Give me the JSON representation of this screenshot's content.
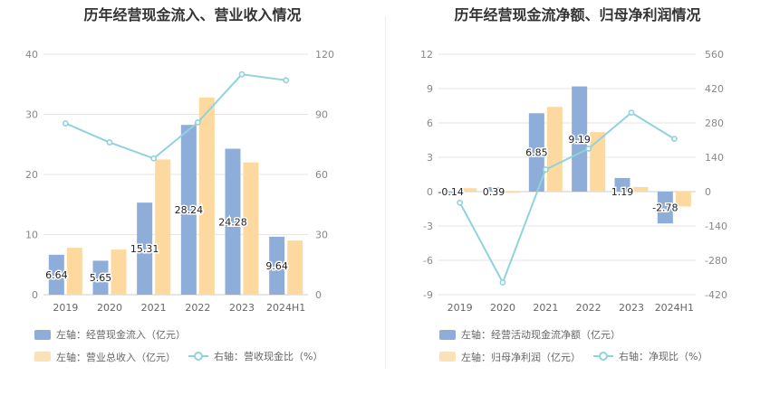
{
  "panels": [
    {
      "title": "历年经营现金流入、营业收入情况",
      "legend": {
        "row1": [
          {
            "label": "左轴：经营现金流入（亿元）",
            "color": "#8eadd9",
            "kind": "bar"
          }
        ],
        "row2": [
          {
            "label": "左轴：营业总收入（亿元）",
            "color": "#fde1b6",
            "kind": "bar"
          },
          {
            "label": "右轴：营收现金比（%）",
            "color": "#8fd3dc",
            "kind": "line"
          }
        ]
      }
    },
    {
      "title": "历年经营现金流净额、归母净利润情况",
      "legend": {
        "row1": [
          {
            "label": "左轴：经营活动现金流净额（亿元）",
            "color": "#8eadd9",
            "kind": "bar"
          }
        ],
        "row2": [
          {
            "label": "左轴：归母净利润（亿元）",
            "color": "#fde1b6",
            "kind": "bar"
          },
          {
            "label": "右轴：净现比（%）",
            "color": "#8fd3dc",
            "kind": "line"
          }
        ]
      }
    }
  ],
  "chart_data": [
    {
      "type": "bar",
      "categories": [
        "2019",
        "2020",
        "2021",
        "2022",
        "2023",
        "2024H1"
      ],
      "y_left": {
        "ticks": [
          "0",
          "10",
          "20",
          "30",
          "40"
        ],
        "lim": [
          0,
          40
        ]
      },
      "y_right": {
        "ticks": [
          "0",
          "30",
          "60",
          "90",
          "120"
        ],
        "lim": [
          0,
          120
        ]
      },
      "series": [
        {
          "name": "经营现金流入",
          "axis": "left",
          "color": "#8eadd9",
          "values": [
            6.64,
            5.65,
            15.31,
            28.24,
            24.28,
            9.64
          ],
          "labels": [
            "6.64",
            "5.65",
            "15.31",
            "28.24",
            "24.28",
            "9.64"
          ]
        },
        {
          "name": "营业总收入",
          "axis": "left",
          "color": "#fdd9a0",
          "values": [
            7.8,
            7.5,
            22.5,
            32.8,
            22.0,
            9.0
          ]
        },
        {
          "name": "营收现金比",
          "axis": "right",
          "type": "line",
          "color": "#8fd3dc",
          "values": [
            85.5,
            76,
            68,
            86,
            110,
            107
          ]
        }
      ],
      "grid": true
    },
    {
      "type": "bar",
      "categories": [
        "2019",
        "2020",
        "2021",
        "2022",
        "2023",
        "2024H1"
      ],
      "y_left": {
        "ticks": [
          "-9",
          "-6",
          "-3",
          "0",
          "3",
          "6",
          "9",
          "12"
        ],
        "lim": [
          -9,
          12
        ]
      },
      "y_right": {
        "ticks": [
          "-420",
          "-280",
          "-140",
          "0",
          "140",
          "280",
          "420",
          "560"
        ],
        "lim": [
          -420,
          560
        ]
      },
      "series": [
        {
          "name": "经营活动现金流净额",
          "axis": "left",
          "color": "#8eadd9",
          "values": [
            -0.14,
            0.39,
            6.85,
            9.19,
            1.19,
            -2.78
          ],
          "labels": [
            "-0.14",
            "0.39",
            "6.85",
            "9.19",
            "1.19",
            "-2.78"
          ]
        },
        {
          "name": "归母净利润",
          "axis": "left",
          "color": "#fdd9a0",
          "values": [
            0.3,
            -0.1,
            7.4,
            5.2,
            0.4,
            -1.3
          ]
        },
        {
          "name": "净现比",
          "axis": "right",
          "type": "line",
          "color": "#8fd3dc",
          "values": [
            -45,
            -370,
            90,
            175,
            322,
            215
          ]
        }
      ],
      "grid": true
    }
  ]
}
